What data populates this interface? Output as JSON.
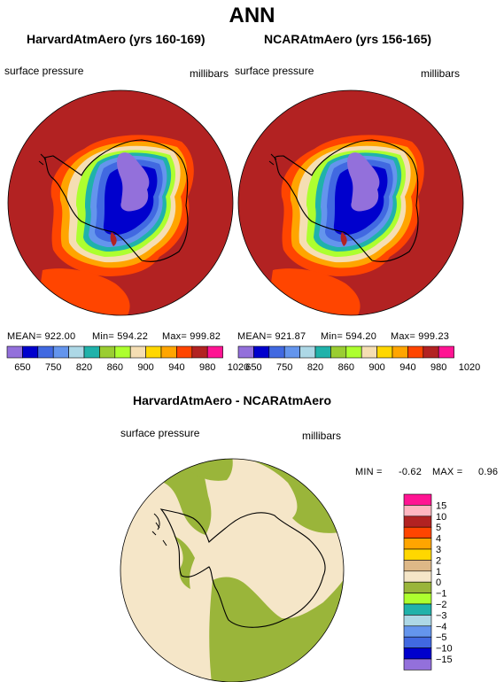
{
  "page": {
    "title": "ANN"
  },
  "panels": [
    {
      "title": "HarvardAtmAero (yrs 160-169)",
      "variable": "surface pressure",
      "units": "millibars",
      "stats": {
        "mean": "MEAN= 922.00",
        "min": "Min= 594.22",
        "max": "Max= 999.82"
      }
    },
    {
      "title": "NCARAtmAero (yrs 156-165)",
      "variable": "surface pressure",
      "units": "millibars",
      "stats": {
        "mean": "MEAN= 921.87",
        "min": "Min= 594.20",
        "max": "Max= 999.23"
      }
    }
  ],
  "colorbar": {
    "colors": [
      "#9370db",
      "#0000cd",
      "#4169e1",
      "#6495ed",
      "#add8e6",
      "#20b2aa",
      "#9acd32",
      "#adff2f",
      "#f5deb3",
      "#ffd700",
      "#ffa500",
      "#ff4500",
      "#b22222",
      "#ff1493"
    ],
    "labels": [
      "650",
      "750",
      "820",
      "860",
      "900",
      "940",
      "980",
      "1020"
    ]
  },
  "diff": {
    "title": "HarvardAtmAero - NCARAtmAero",
    "variable": "surface pressure",
    "units": "millibars",
    "min_label": "MIN =",
    "min_value": "-0.62",
    "max_label": "MAX =",
    "max_value": "0.96",
    "legend": {
      "colors": [
        "#ff1493",
        "#ffb6c1",
        "#b22222",
        "#ff4500",
        "#ffa500",
        "#ffd700",
        "#deb887",
        "#f5e6c8",
        "#9ab53a",
        "#adff2f",
        "#20b2aa",
        "#add8e6",
        "#6495ed",
        "#4169e1",
        "#0000cd",
        "#9370db"
      ],
      "labels": [
        "15",
        "10",
        "5",
        "4",
        "3",
        "2",
        "1",
        "0",
        "−1",
        "−2",
        "−3",
        "−4",
        "−5",
        "−10",
        "−15"
      ]
    }
  }
}
